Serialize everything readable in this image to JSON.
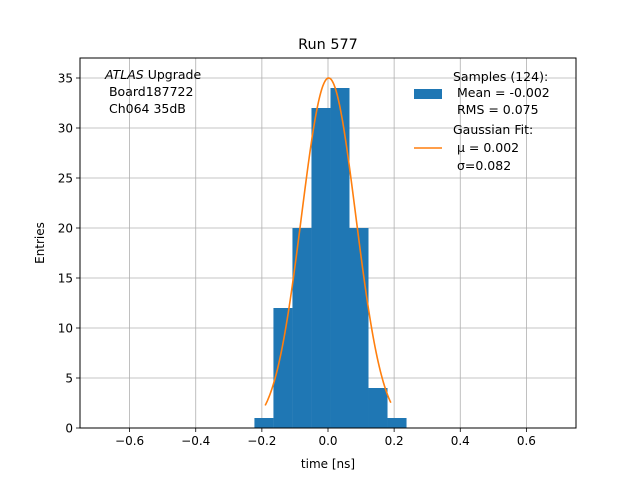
{
  "chart_data": {
    "type": "bar",
    "title": "Run 577",
    "xlabel": "time [ns]",
    "ylabel": "Entries",
    "xlim": [
      -0.75,
      0.75
    ],
    "ylim": [
      0,
      37
    ],
    "grid": true,
    "x_ticks": [
      -0.6,
      -0.4,
      -0.2,
      0.0,
      0.2,
      0.4,
      0.6
    ],
    "x_tick_labels": [
      "−0.6",
      "−0.4",
      "−0.2",
      "0.0",
      "0.2",
      "0.4",
      "0.6"
    ],
    "y_ticks": [
      0,
      5,
      10,
      15,
      20,
      25,
      30,
      35
    ],
    "y_tick_labels": [
      "0",
      "5",
      "10",
      "15",
      "20",
      "25",
      "30",
      "35"
    ],
    "annotation": {
      "line1_italic": "ATLAS",
      "line1_rest": " Upgrade",
      "line2": " Board187722",
      "line3": " Ch064 35dB"
    },
    "histogram": {
      "name": "Samples (124):",
      "color": "#1f77b4",
      "bin_edges": [
        -0.2225,
        -0.165,
        -0.1075,
        -0.05,
        0.0075,
        0.065,
        0.1225,
        0.18,
        0.2375
      ],
      "counts": [
        1,
        12,
        20,
        32,
        34,
        20,
        4,
        1
      ]
    },
    "fit": {
      "name": "Gaussian Fit:",
      "color": "#ff7f0e",
      "mu": 0.002,
      "sigma": 0.082,
      "amplitude": 35,
      "x_range": [
        -0.19,
        0.19
      ]
    },
    "legend": {
      "placement": "top-right",
      "hist_lines": [
        "Samples (124):",
        " Mean = -0.002",
        " RMS = 0.075"
      ],
      "fit_line1": "Gaussian Fit:",
      "fit_mu_label": " μ = 0.002",
      "fit_sigma_label": " σ=0.082"
    }
  }
}
